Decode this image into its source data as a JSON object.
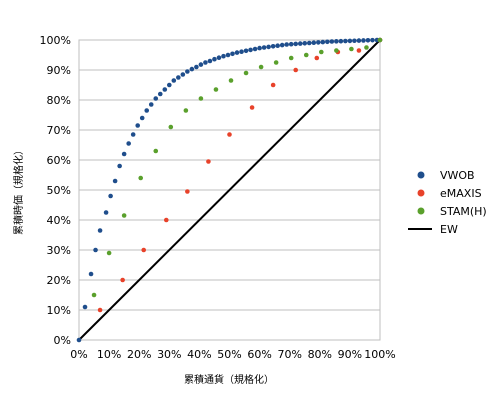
{
  "chart_data": {
    "type": "scatter",
    "xlabel": "累積通貨（規格化）",
    "ylabel": "累積時価（規格化）",
    "xlim": [
      0,
      100
    ],
    "ylim": [
      0,
      100
    ],
    "x_ticks": [
      "0%",
      "10%",
      "20%",
      "30%",
      "40%",
      "50%",
      "60%",
      "70%",
      "80%",
      "90%",
      "100%"
    ],
    "y_ticks": [
      "0%",
      "10%",
      "20%",
      "30%",
      "40%",
      "50%",
      "60%",
      "70%",
      "80%",
      "90%",
      "100%"
    ],
    "grid": "horizontal",
    "legend_position": "right",
    "series": [
      {
        "name": "VWOB",
        "marker": "circle",
        "color": "#1f4e8c",
        "points": [
          [
            0,
            0
          ],
          [
            2,
            11
          ],
          [
            4,
            22
          ],
          [
            5.5,
            30
          ],
          [
            7,
            36.5
          ],
          [
            9,
            42.5
          ],
          [
            10.5,
            48
          ],
          [
            12,
            53
          ],
          [
            13.5,
            58
          ],
          [
            15,
            62
          ],
          [
            16.5,
            65.5
          ],
          [
            18,
            68.5
          ],
          [
            19.5,
            71.5
          ],
          [
            21,
            74
          ],
          [
            22.5,
            76.5
          ],
          [
            24,
            78.5
          ],
          [
            25.5,
            80.5
          ],
          [
            27,
            82
          ],
          [
            28.5,
            83.5
          ],
          [
            30,
            85
          ],
          [
            31.5,
            86.5
          ],
          [
            33,
            87.5
          ],
          [
            34.5,
            88.5
          ],
          [
            36,
            89.5
          ],
          [
            37.5,
            90.3
          ],
          [
            39,
            91
          ],
          [
            40.5,
            91.8
          ],
          [
            42,
            92.5
          ],
          [
            43.5,
            93
          ],
          [
            45,
            93.6
          ],
          [
            46.5,
            94.1
          ],
          [
            48,
            94.6
          ],
          [
            49.5,
            95
          ],
          [
            51,
            95.4
          ],
          [
            52.5,
            95.8
          ],
          [
            54,
            96.1
          ],
          [
            55.5,
            96.4
          ],
          [
            57,
            96.7
          ],
          [
            58.5,
            97
          ],
          [
            60,
            97.3
          ],
          [
            61.5,
            97.5
          ],
          [
            63,
            97.7
          ],
          [
            64.5,
            97.9
          ],
          [
            66,
            98.1
          ],
          [
            67.5,
            98.3
          ],
          [
            69,
            98.5
          ],
          [
            70.5,
            98.6
          ],
          [
            72,
            98.7
          ],
          [
            73.5,
            98.8
          ],
          [
            75,
            98.9
          ],
          [
            76.5,
            99
          ],
          [
            78,
            99.1
          ],
          [
            79.5,
            99.2
          ],
          [
            81,
            99.3
          ],
          [
            82.5,
            99.4
          ],
          [
            84,
            99.5
          ],
          [
            85.5,
            99.55
          ],
          [
            87,
            99.6
          ],
          [
            88.5,
            99.65
          ],
          [
            90,
            99.7
          ],
          [
            91.5,
            99.75
          ],
          [
            93,
            99.8
          ],
          [
            94.5,
            99.85
          ],
          [
            96,
            99.9
          ],
          [
            97.5,
            99.95
          ],
          [
            99,
            100
          ],
          [
            100,
            100
          ]
        ]
      },
      {
        "name": "eMAXIS",
        "marker": "circle",
        "color": "#e8422a",
        "points": [
          [
            7,
            10
          ],
          [
            14.5,
            20
          ],
          [
            21.5,
            30
          ],
          [
            29,
            40
          ],
          [
            36,
            49.5
          ],
          [
            43,
            59.5
          ],
          [
            50,
            68.5
          ],
          [
            57.5,
            77.5
          ],
          [
            64.5,
            85
          ],
          [
            72,
            90
          ],
          [
            79,
            94
          ],
          [
            86,
            96
          ],
          [
            93,
            96.5
          ],
          [
            100,
            100
          ]
        ]
      },
      {
        "name": "STAM(H)",
        "marker": "circle",
        "color": "#5aa02c",
        "points": [
          [
            5,
            15
          ],
          [
            10,
            29
          ],
          [
            15,
            41.5
          ],
          [
            20.5,
            54
          ],
          [
            25.5,
            63
          ],
          [
            30.5,
            71
          ],
          [
            35.5,
            76.5
          ],
          [
            40.5,
            80.5
          ],
          [
            45.5,
            83.5
          ],
          [
            50.5,
            86.5
          ],
          [
            55.5,
            89
          ],
          [
            60.5,
            91
          ],
          [
            65.5,
            92.5
          ],
          [
            70.5,
            94
          ],
          [
            75.5,
            95
          ],
          [
            80.5,
            96
          ],
          [
            85.5,
            96.5
          ],
          [
            90.5,
            97
          ],
          [
            95.5,
            97.5
          ],
          [
            100,
            100
          ]
        ]
      },
      {
        "name": "EW",
        "marker": "line",
        "color": "#000000",
        "points": [
          [
            0,
            0
          ],
          [
            100,
            100
          ]
        ]
      }
    ]
  }
}
